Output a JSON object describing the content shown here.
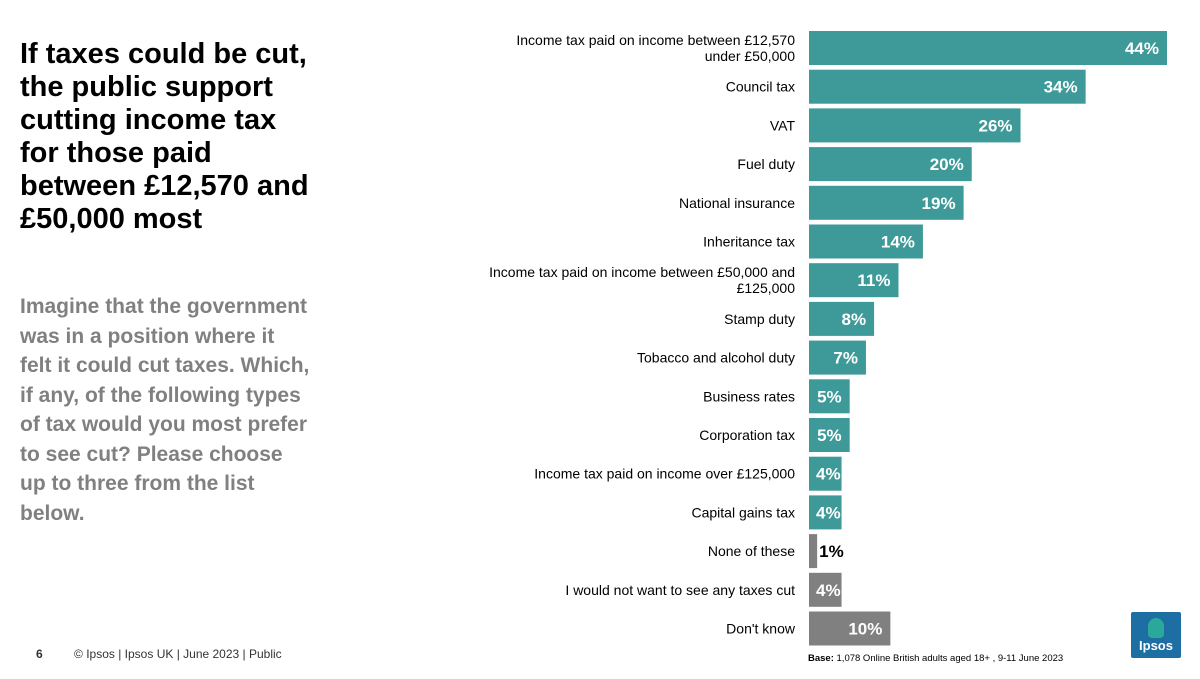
{
  "title": "If taxes could be cut, the public support cutting income tax for those paid between £12,570 and £50,000 most",
  "question": "Imagine that the government was in a position where it felt it could cut taxes. Which, if any, of the following types of tax would you most prefer to see cut? Please choose up to three from the list below.",
  "footer": {
    "page_number": "6",
    "source": "© Ipsos |  Ipsos UK | June  2023 | Public"
  },
  "base_note": {
    "label": "Base:",
    "text": "1,078 Online British adults aged 18+ , 9-11 June 2023"
  },
  "logo": {
    "text": "Ipsos",
    "color": "#1d6fa3",
    "accent": "#2aa89a"
  },
  "colors": {
    "tax_bar": "#3d9a98",
    "other_bar": "#808080"
  },
  "chart_data": {
    "type": "bar",
    "orientation": "horizontal",
    "unit": "%",
    "xlim": [
      0,
      44
    ],
    "categories": [
      "Income tax paid on income between £12,570 under £50,000",
      "Council tax",
      "VAT",
      "Fuel duty",
      "National insurance",
      "Inheritance tax",
      "Income tax paid on income between £50,000 and £125,000",
      "Stamp duty",
      "Tobacco and alcohol duty",
      "Business rates",
      "Corporation tax",
      "Income tax paid on income over £125,000",
      "Capital gains tax",
      "None of these",
      "I would not want to see any taxes cut",
      "Don't know"
    ],
    "values": [
      44,
      34,
      26,
      20,
      19,
      14,
      11,
      8,
      7,
      5,
      5,
      4,
      4,
      1,
      4,
      10
    ],
    "value_labels": [
      "44%",
      "34%",
      "26%",
      "20%",
      "19%",
      "14%",
      "11%",
      "8%",
      "7%",
      "5%",
      "5%",
      "4%",
      "4%",
      "1%",
      "4%",
      "10%"
    ],
    "bar_group": [
      "tax",
      "tax",
      "tax",
      "tax",
      "tax",
      "tax",
      "tax",
      "tax",
      "tax",
      "tax",
      "tax",
      "tax",
      "tax",
      "other",
      "other",
      "other"
    ],
    "grid": false,
    "legend": "none"
  }
}
